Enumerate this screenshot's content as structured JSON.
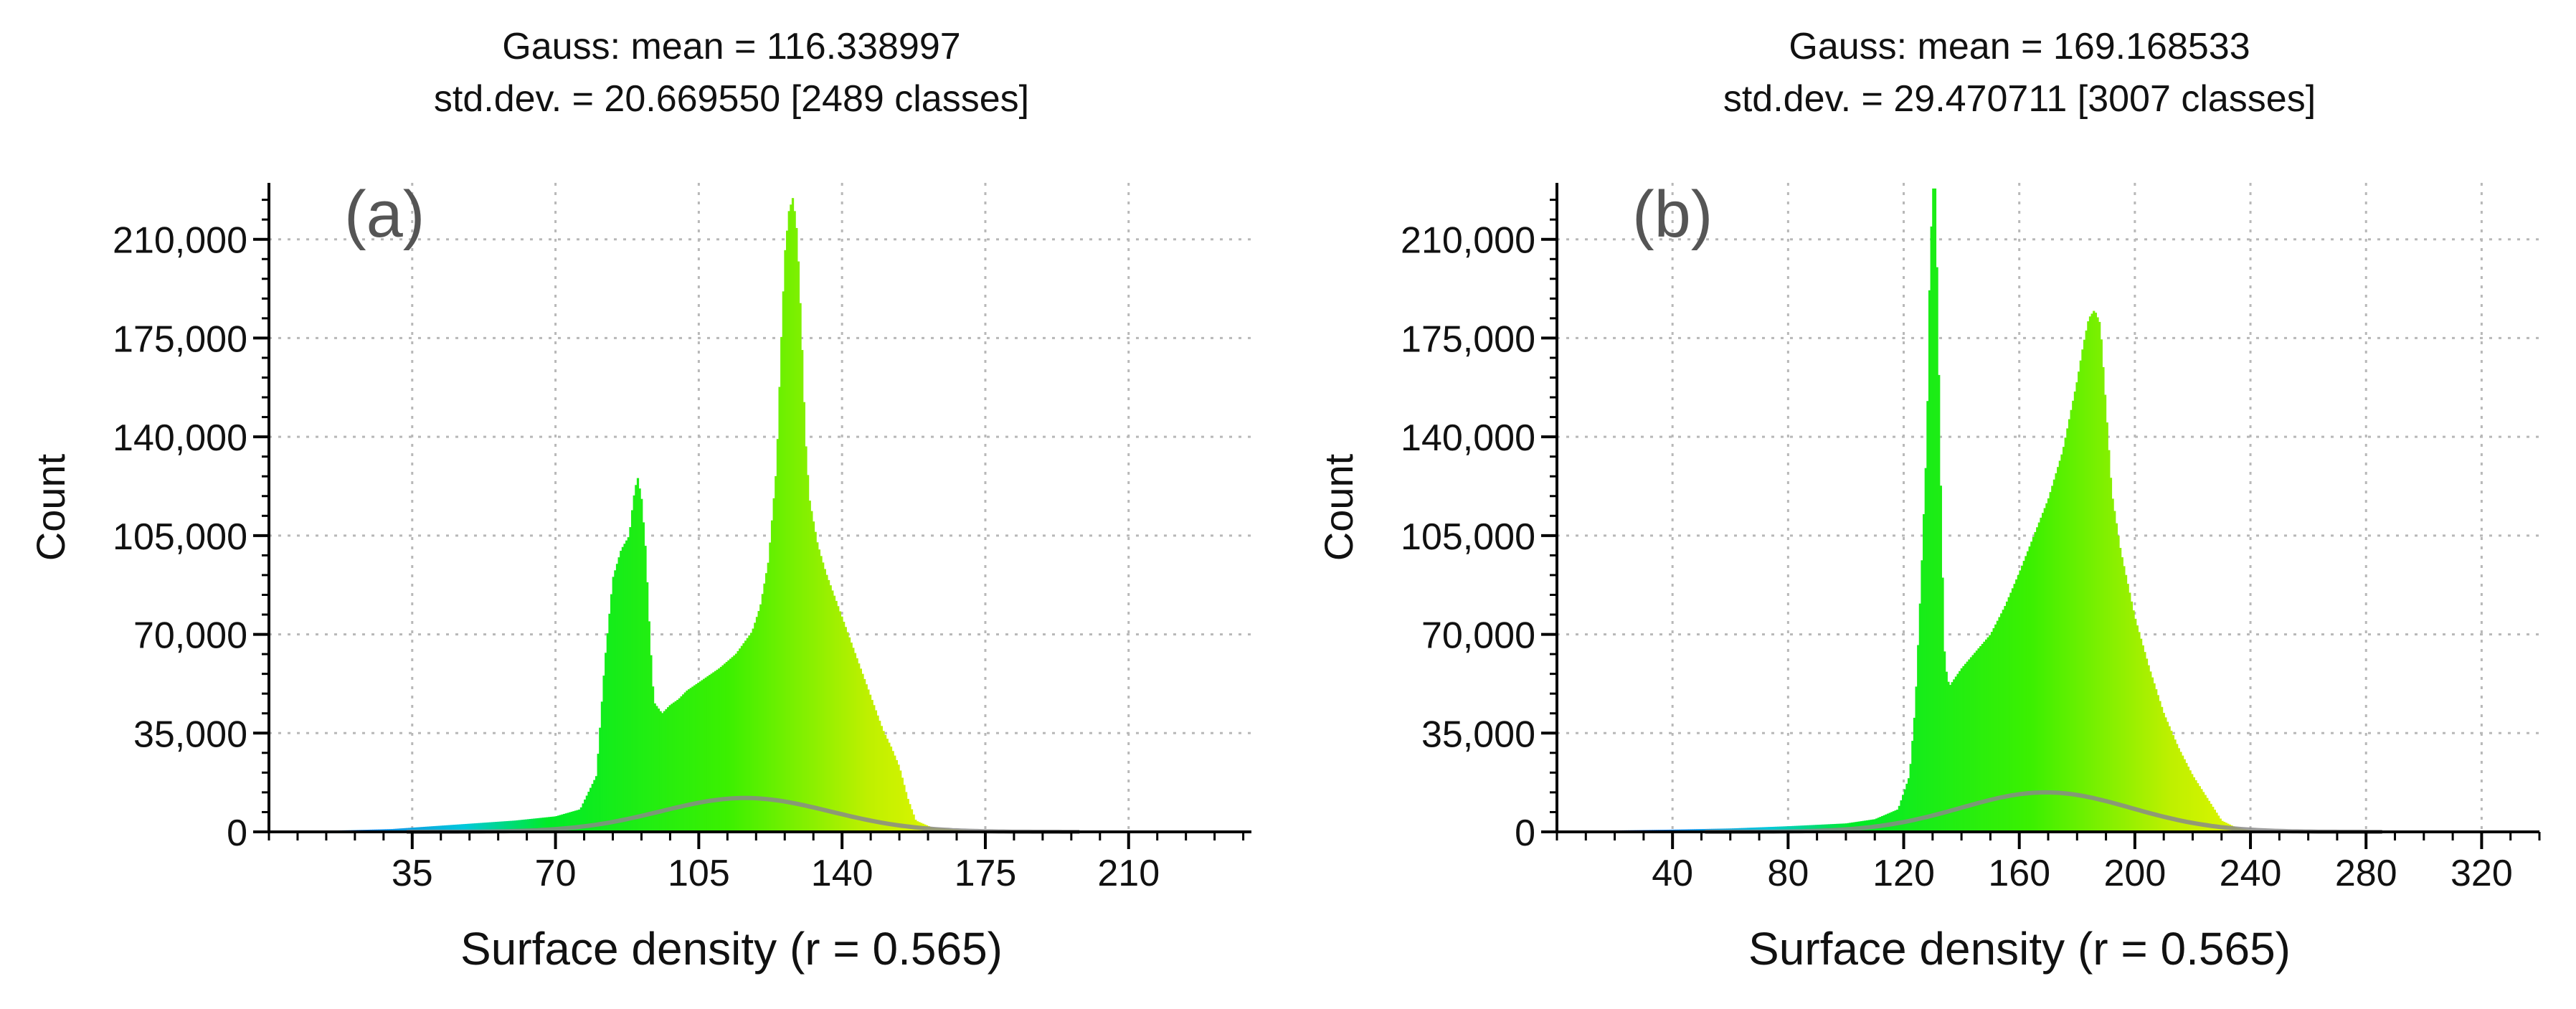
{
  "chart_data": [
    {
      "type": "bar",
      "panel_label": "(a)",
      "title_line1": "Gauss: mean = 116.338997",
      "title_line2": "std.dev. = 20.669550 [2489 classes]",
      "xlabel": "Surface density (r = 0.565)",
      "ylabel": "Count",
      "xlim": [
        0,
        240
      ],
      "ylim": [
        0,
        230000
      ],
      "xticks": [
        35,
        70,
        105,
        140,
        175,
        210
      ],
      "xtick_labels": [
        "35",
        "70",
        "105",
        "140",
        "175",
        "210"
      ],
      "yticks": [
        0,
        35000,
        70000,
        105000,
        140000,
        175000,
        210000
      ],
      "ytick_labels": [
        "0",
        "35,000",
        "70,000",
        "105,000",
        "140,000",
        "175,000",
        "210,000"
      ],
      "grid": true,
      "gauss": {
        "mean": 116.338997,
        "std": 20.66955,
        "peak": 12000
      },
      "series": [
        {
          "name": "histogram",
          "x": [
            10,
            20,
            30,
            40,
            50,
            60,
            70,
            76,
            80,
            82,
            84,
            86,
            88,
            89,
            90,
            91,
            92,
            93,
            94,
            96,
            98,
            100,
            102,
            106,
            110,
            114,
            118,
            120,
            122,
            124,
            125,
            126,
            127,
            128,
            129,
            130,
            131,
            132,
            134,
            136,
            138,
            140,
            142,
            144,
            146,
            148,
            150,
            152,
            154,
            156,
            158,
            162,
            170,
            180
          ],
          "values": [
            300,
            600,
            1000,
            2000,
            3000,
            4000,
            5500,
            8000,
            20000,
            60000,
            90000,
            100000,
            105000,
            118000,
            126000,
            118000,
            100000,
            70000,
            46000,
            42000,
            45000,
            47000,
            50000,
            54000,
            58000,
            63000,
            71000,
            80000,
            96000,
            130000,
            170000,
            205000,
            220000,
            225000,
            212000,
            180000,
            140000,
            118000,
            102000,
            92000,
            84000,
            76000,
            68000,
            60000,
            52000,
            44000,
            36000,
            30000,
            23000,
            12000,
            4000,
            1500,
            600,
            200
          ]
        }
      ]
    },
    {
      "type": "bar",
      "panel_label": "(b)",
      "title_line1": "Gauss: mean = 169.168533",
      "title_line2": "std.dev. = 29.470711 [3007 classes]",
      "xlabel": "Surface density (r = 0.565)",
      "ylabel": "Count",
      "xlim": [
        0,
        340
      ],
      "ylim": [
        0,
        230000
      ],
      "xticks": [
        40,
        80,
        120,
        160,
        200,
        240,
        280,
        320
      ],
      "xtick_labels": [
        "40",
        "80",
        "120",
        "160",
        "200",
        "240",
        "280",
        "320"
      ],
      "yticks": [
        0,
        35000,
        70000,
        105000,
        140000,
        175000,
        210000
      ],
      "ytick_labels": [
        "0",
        "35,000",
        "70,000",
        "105,000",
        "140,000",
        "175,000",
        "210,000"
      ],
      "grid": true,
      "gauss": {
        "mean": 169.168533,
        "std": 29.470711,
        "peak": 14000
      },
      "series": [
        {
          "name": "histogram",
          "x": [
            20,
            40,
            60,
            80,
            100,
            110,
            118,
            122,
            124,
            126,
            128,
            129,
            130,
            131,
            132,
            133,
            134,
            135,
            136,
            138,
            140,
            145,
            150,
            155,
            160,
            165,
            170,
            175,
            178,
            180,
            182,
            184,
            186,
            188,
            190,
            192,
            195,
            200,
            205,
            210,
            215,
            220,
            225,
            230,
            235,
            240,
            250,
            260
          ],
          "values": [
            500,
            800,
            1200,
            2000,
            3000,
            4500,
            8000,
            20000,
            45000,
            90000,
            140000,
            200000,
            228000,
            228000,
            170000,
            110000,
            65000,
            54000,
            52000,
            55000,
            58000,
            64000,
            70000,
            80000,
            92000,
            105000,
            118000,
            135000,
            150000,
            160000,
            172000,
            182000,
            185000,
            180000,
            150000,
            120000,
            100000,
            76000,
            58000,
            42000,
            30000,
            20000,
            12000,
            4000,
            1500,
            600,
            200,
            100
          ]
        }
      ]
    }
  ]
}
